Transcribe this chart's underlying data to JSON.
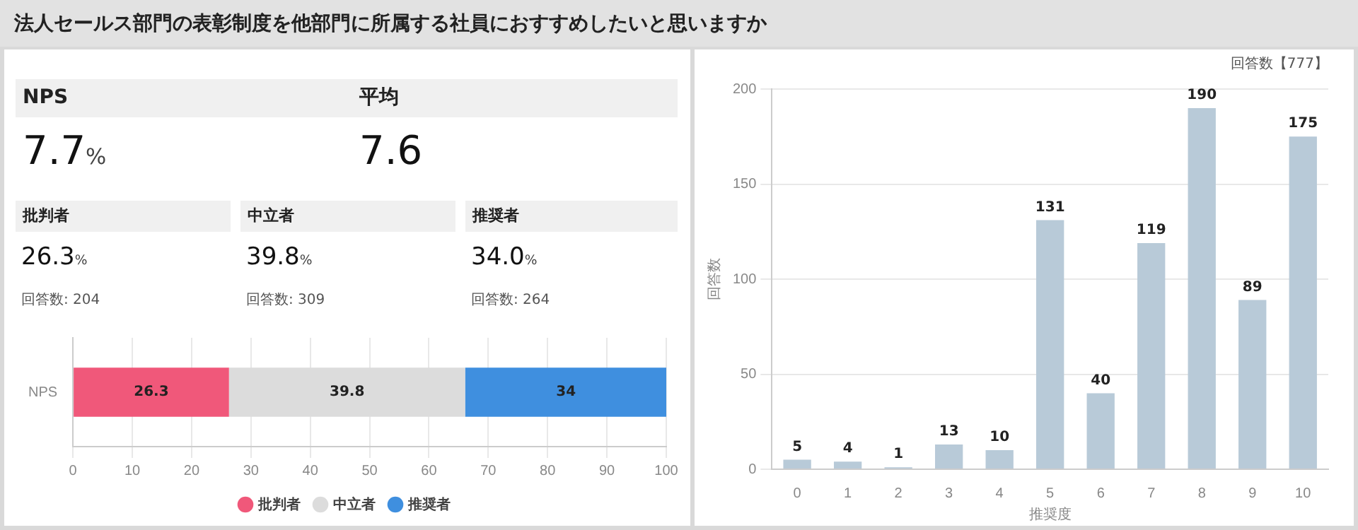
{
  "chart_data": [
    {
      "type": "other",
      "title": "法人セールス部門の表彰制度を他部門に所属する社員におすすめしたいと思いますか",
      "annotations": [
        "NPS",
        "7.7%",
        "平均",
        "7.6",
        "批判者",
        "26.3%",
        "回答数: 204",
        "中立者",
        "39.8%",
        "回答数: 309",
        "推奨者",
        "34.0%",
        "回答数: 264"
      ]
    },
    {
      "type": "bar",
      "orientation": "horizontal",
      "stacked": true,
      "categories": [
        "NPS"
      ],
      "series": [
        {
          "name": "批判者",
          "color": "#f0587a",
          "values": [
            26.3
          ]
        },
        {
          "name": "中立者",
          "color": "#dcdcdc",
          "values": [
            39.8
          ]
        },
        {
          "name": "推奨者",
          "color": "#3f8fdf",
          "values": [
            34
          ]
        }
      ],
      "xlim": [
        0,
        100
      ],
      "xticks": [
        0,
        10,
        20,
        30,
        40,
        50,
        60,
        70,
        80,
        90,
        100
      ],
      "grid": "x",
      "legend": "bottom",
      "data_labels": true
    },
    {
      "type": "bar",
      "categories": [
        "0",
        "1",
        "2",
        "3",
        "4",
        "5",
        "6",
        "7",
        "8",
        "9",
        "10"
      ],
      "values": [
        5,
        4,
        1,
        13,
        10,
        131,
        40,
        119,
        190,
        89,
        175
      ],
      "color": "#b8cad8",
      "ylim": [
        0,
        200
      ],
      "yticks": [
        0,
        50,
        100,
        150,
        200
      ],
      "grid": "y",
      "xlabel": "推奨度",
      "ylabel": "回答数",
      "data_labels": true,
      "annotations": [
        "回答数【777】"
      ]
    }
  ]
}
